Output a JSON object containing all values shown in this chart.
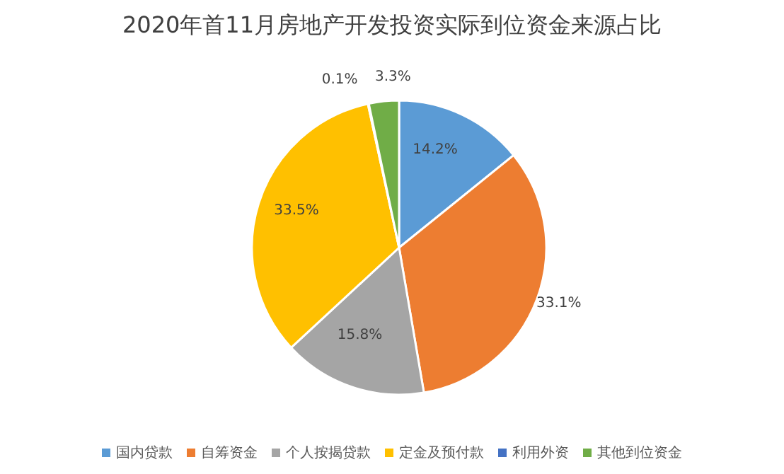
{
  "chart_data": {
    "type": "pie",
    "title": "2020年首11月房地产开发投资实际到位资金来源占比",
    "categories": [
      "国内贷款",
      "自筹资金",
      "个人按揭贷款",
      "定金及预付款",
      "利用外资",
      "其他到位资金"
    ],
    "values": [
      14.2,
      33.1,
      15.8,
      33.5,
      0.1,
      3.3
    ],
    "colors": [
      "#5b9bd5",
      "#ed7d31",
      "#a5a5a5",
      "#ffc000",
      "#4472c4",
      "#70ad47"
    ],
    "value_labels": [
      "14.2%",
      "33.1%",
      "15.8%",
      "33.5%",
      "0.1%",
      "3.3%"
    ],
    "legend": "bottom"
  }
}
